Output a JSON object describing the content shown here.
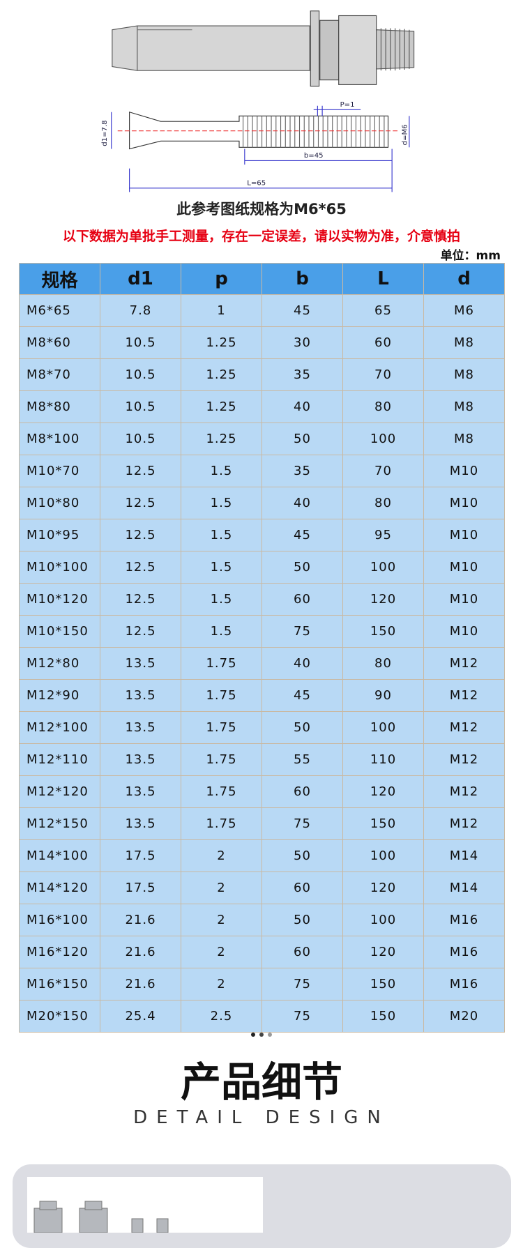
{
  "drawing": {
    "labels": {
      "p": "P=1",
      "d1": "d1=7.8",
      "d": "d=M6",
      "b": "b=45",
      "L": "L=65"
    }
  },
  "caption": "此参考图纸规格为M6*65",
  "notice": "以下数据为单批手工测量，存在一定误差，请以实物为准，介意慎拍",
  "unit": "单位：mm",
  "table": {
    "header": [
      "规格",
      "d1",
      "p",
      "b",
      "L",
      "d"
    ],
    "rows": [
      [
        "M6*65",
        "7.8",
        "1",
        "45",
        "65",
        "M6"
      ],
      [
        "M8*60",
        "10.5",
        "1.25",
        "30",
        "60",
        "M8"
      ],
      [
        "M8*70",
        "10.5",
        "1.25",
        "35",
        "70",
        "M8"
      ],
      [
        "M8*80",
        "10.5",
        "1.25",
        "40",
        "80",
        "M8"
      ],
      [
        "M8*100",
        "10.5",
        "1.25",
        "50",
        "100",
        "M8"
      ],
      [
        "M10*70",
        "12.5",
        "1.5",
        "35",
        "70",
        "M10"
      ],
      [
        "M10*80",
        "12.5",
        "1.5",
        "40",
        "80",
        "M10"
      ],
      [
        "M10*95",
        "12.5",
        "1.5",
        "45",
        "95",
        "M10"
      ],
      [
        "M10*100",
        "12.5",
        "1.5",
        "50",
        "100",
        "M10"
      ],
      [
        "M10*120",
        "12.5",
        "1.5",
        "60",
        "120",
        "M10"
      ],
      [
        "M10*150",
        "12.5",
        "1.5",
        "75",
        "150",
        "M10"
      ],
      [
        "M12*80",
        "13.5",
        "1.75",
        "40",
        "80",
        "M12"
      ],
      [
        "M12*90",
        "13.5",
        "1.75",
        "45",
        "90",
        "M12"
      ],
      [
        "M12*100",
        "13.5",
        "1.75",
        "50",
        "100",
        "M12"
      ],
      [
        "M12*110",
        "13.5",
        "1.75",
        "55",
        "110",
        "M12"
      ],
      [
        "M12*120",
        "13.5",
        "1.75",
        "60",
        "120",
        "M12"
      ],
      [
        "M12*150",
        "13.5",
        "1.75",
        "75",
        "150",
        "M12"
      ],
      [
        "M14*100",
        "17.5",
        "2",
        "50",
        "100",
        "M14"
      ],
      [
        "M14*120",
        "17.5",
        "2",
        "60",
        "120",
        "M14"
      ],
      [
        "M16*100",
        "21.6",
        "2",
        "50",
        "100",
        "M16"
      ],
      [
        "M16*120",
        "21.6",
        "2",
        "60",
        "120",
        "M16"
      ],
      [
        "M16*150",
        "21.6",
        "2",
        "75",
        "150",
        "M16"
      ],
      [
        "M20*150",
        "25.4",
        "2.5",
        "75",
        "150",
        "M20"
      ]
    ]
  },
  "section": {
    "title": "产品细节",
    "subtitle": "DETAIL DESIGN"
  }
}
